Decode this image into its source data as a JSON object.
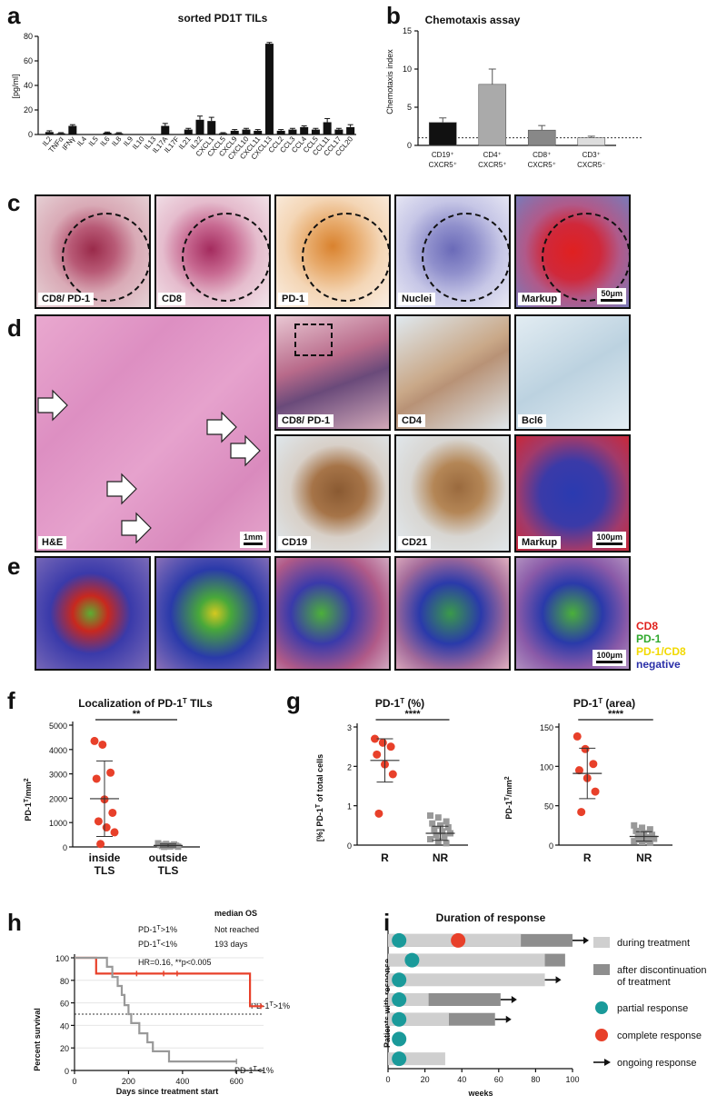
{
  "panels": {
    "a": "a",
    "b": "b",
    "c": "c",
    "d": "d",
    "e": "e",
    "f": "f",
    "g": "g",
    "h": "h",
    "i": "i"
  },
  "panel_a": {
    "title": "sorted PD1T TILs",
    "ylabel": "[pg/ml]"
  },
  "panel_b": {
    "title": "Chemotaxis assay",
    "ylabel": "Chemotaxis index",
    "cat_lines": [
      [
        "CD19⁺",
        "CXCR5⁺"
      ],
      [
        "CD4⁺",
        "CXCR5⁺"
      ],
      [
        "CD8⁺",
        "CXCR5⁺"
      ],
      [
        "CD3⁺",
        "CXCR5⁻"
      ]
    ]
  },
  "panel_c": {
    "labels": [
      "CD8/ PD-1",
      "CD8",
      "PD-1",
      "Nuclei",
      "Markup"
    ],
    "scale": "50μm"
  },
  "panel_d": {
    "labels": [
      "H&E",
      "CD8/ PD-1",
      "CD4",
      "Bcl6",
      "CD19",
      "CD21",
      "Markup"
    ],
    "scale_he": "1mm",
    "scale_markup": "100μm"
  },
  "panel_e": {
    "scale": "100μm",
    "legend": [
      {
        "label": "CD8",
        "color": "#e0201c"
      },
      {
        "label": "PD-1",
        "color": "#2fa82c"
      },
      {
        "label": "PD-1/CD8",
        "color": "#f2d900"
      },
      {
        "label": "negative",
        "color": "#2a2fa8"
      }
    ]
  },
  "panel_f": {
    "title": "Localization of PD-1T TILs",
    "ylabel": "PD-1T/mm²",
    "sig": "**",
    "cat_lines": [
      [
        "inside",
        "TLS"
      ],
      [
        "outside",
        "TLS"
      ]
    ]
  },
  "panel_g1": {
    "title": "PD-1T (%)",
    "ylabel": "[%] PD-1T of total cells",
    "sig": "****"
  },
  "panel_g2": {
    "title": "PD-1T (area)",
    "ylabel": "PD-1T/mm²",
    "sig": "****"
  },
  "panel_h": {
    "xlabel": "Days since treatment start",
    "ylabel": "Percent survival",
    "stats_header": "median OS",
    "row1_group": "PD-1T>1%",
    "row1_val": "Not reached",
    "row2_group": "PD-1T<1%",
    "row2_val": "193 days",
    "hr": "HR=0.16, **p<0.005",
    "label_hi": "PD-1T>1%",
    "label_lo": "PD-1T<1%"
  },
  "panel_i": {
    "title": "Duration of response",
    "ylabel": "Patients with response",
    "xlabel": "weeks",
    "legend": [
      {
        "label": "during treatment",
        "kind": "light"
      },
      {
        "label": "after discontinuation of treatment",
        "kind": "dark"
      },
      {
        "label": "partial response",
        "kind": "partial"
      },
      {
        "label": "complete response",
        "kind": "complete"
      },
      {
        "label": "ongoing response",
        "kind": "arrow"
      }
    ]
  },
  "chart_data": [
    {
      "id": "a",
      "type": "bar",
      "title": "sorted PD1T TILs",
      "ylabel": "[pg/ml]",
      "ylim": [
        0,
        80
      ],
      "yticks": [
        0,
        20,
        40,
        60,
        80
      ],
      "categories": [
        "IL2",
        "TNFα",
        "IFNγ",
        "IL4",
        "IL5",
        "IL6",
        "IL8",
        "IL9",
        "IL10",
        "IL13",
        "IL17A",
        "IL17F",
        "IL21",
        "IL22",
        "CXCL1",
        "CXCL5",
        "CXCL9",
        "CXCL10",
        "CXCL11",
        "CXCL13",
        "CCL2",
        "CCL3",
        "CCL4",
        "CCL5",
        "CCL11",
        "CCL17",
        "CCL20"
      ],
      "values": [
        2,
        1,
        7,
        0,
        0,
        1.5,
        1,
        0,
        0,
        0,
        7,
        0,
        4,
        12,
        11,
        1,
        3,
        4,
        3,
        74,
        3,
        4,
        6,
        4,
        10,
        4,
        6
      ],
      "errors": [
        1,
        0.5,
        1,
        0,
        0,
        0.5,
        0.5,
        0,
        0,
        0,
        2,
        0,
        1,
        3,
        3,
        0.5,
        1,
        1,
        1,
        1,
        1,
        1,
        1,
        1,
        3,
        1,
        2
      ]
    },
    {
      "id": "b",
      "type": "bar",
      "title": "Chemotaxis assay",
      "ylabel": "Chemotaxis index",
      "ylim": [
        0,
        15
      ],
      "yticks": [
        0,
        5,
        10,
        15
      ],
      "values": [
        3,
        8,
        2,
        1
      ],
      "errors": [
        0.6,
        2,
        0.6,
        0.2
      ],
      "colors": [
        "#111111",
        "#aaaaaa",
        "#888888",
        "#dddddd"
      ],
      "reference_line": 1
    },
    {
      "id": "f",
      "type": "scatter",
      "title": "Localization of PD-1T TILs",
      "ylabel": "PD-1T/mm²",
      "ylim": [
        0,
        5000
      ],
      "yticks": [
        0,
        1000,
        2000,
        3000,
        4000,
        5000
      ],
      "series": [
        {
          "name": "inside TLS",
          "values": [
            4350,
            4200,
            3050,
            2800,
            1950,
            1400,
            1050,
            800,
            600,
            120
          ],
          "mean": 1980,
          "sd": 1550,
          "color": "#e8402a"
        },
        {
          "name": "outside TLS",
          "values": [
            150,
            120,
            100,
            80,
            60,
            50,
            40,
            20,
            10,
            5
          ],
          "mean": 60,
          "sd": 60,
          "color": "#999999"
        }
      ]
    },
    {
      "id": "g1",
      "type": "scatter",
      "title": "PD-1T (%)",
      "ylabel": "[%] PD-1T of total cells",
      "ylim": [
        0,
        3
      ],
      "yticks": [
        0,
        1,
        2,
        3
      ],
      "series": [
        {
          "name": "R",
          "values": [
            2.7,
            2.6,
            2.5,
            2.3,
            2.05,
            1.8,
            0.8
          ],
          "mean": 2.15,
          "sd": 0.55,
          "color": "#e8402a"
        },
        {
          "name": "NR",
          "values": [
            0.75,
            0.7,
            0.6,
            0.55,
            0.5,
            0.45,
            0.4,
            0.35,
            0.3,
            0.25,
            0.2,
            0.15,
            0.1,
            0.05
          ],
          "mean": 0.3,
          "sd": 0.18,
          "color": "#999999"
        }
      ]
    },
    {
      "id": "g2",
      "type": "scatter",
      "title": "PD-1T (area)",
      "ylabel": "PD-1T/mm²",
      "ylim": [
        0,
        150
      ],
      "yticks": [
        0,
        50,
        100,
        150
      ],
      "series": [
        {
          "name": "R",
          "values": [
            138,
            122,
            103,
            95,
            85,
            68,
            42
          ],
          "mean": 91,
          "sd": 32,
          "color": "#e8402a"
        },
        {
          "name": "NR",
          "values": [
            25,
            22,
            20,
            18,
            15,
            13,
            12,
            10,
            8,
            7,
            6,
            5,
            4,
            3
          ],
          "mean": 11,
          "sd": 6,
          "color": "#999999"
        }
      ]
    },
    {
      "id": "h",
      "type": "line",
      "title": "",
      "xlabel": "Days since treatment start",
      "ylabel": "Percent survival",
      "xlim": [
        0,
        700
      ],
      "ylim": [
        0,
        100
      ],
      "xticks": [
        0,
        200,
        400,
        600
      ],
      "yticks": [
        0,
        20,
        40,
        60,
        80,
        100
      ],
      "series": [
        {
          "name": "PD-1T>1%",
          "color": "#e8402a",
          "steps": [
            [
              0,
              100
            ],
            [
              80,
              100
            ],
            [
              80,
              86
            ],
            [
              650,
              86
            ],
            [
              650,
              57
            ],
            [
              700,
              57
            ]
          ],
          "censor": [
            [
              230,
              86
            ],
            [
              330,
              86
            ],
            [
              380,
              86
            ],
            [
              690,
              57
            ]
          ]
        },
        {
          "name": "PD-1T<1%",
          "color": "#999999",
          "steps": [
            [
              0,
              100
            ],
            [
              120,
              100
            ],
            [
              120,
              92
            ],
            [
              140,
              92
            ],
            [
              140,
              83
            ],
            [
              160,
              83
            ],
            [
              160,
              75
            ],
            [
              175,
              75
            ],
            [
              175,
              67
            ],
            [
              185,
              67
            ],
            [
              185,
              58
            ],
            [
              200,
              58
            ],
            [
              200,
              50
            ],
            [
              210,
              50
            ],
            [
              210,
              42
            ],
            [
              240,
              42
            ],
            [
              240,
              33
            ],
            [
              270,
              33
            ],
            [
              270,
              25
            ],
            [
              290,
              25
            ],
            [
              290,
              17
            ],
            [
              350,
              17
            ],
            [
              350,
              8
            ],
            [
              600,
              8
            ]
          ],
          "censor": [
            [
              600,
              8
            ]
          ]
        }
      ],
      "reference_line": 50
    },
    {
      "id": "i",
      "type": "bar",
      "title": "Duration of response",
      "xlabel": "weeks",
      "ylabel": "Patients with response",
      "xlim": [
        0,
        100
      ],
      "xticks": [
        0,
        20,
        40,
        60,
        80,
        100
      ],
      "bars": [
        {
          "during": 72,
          "after": 100,
          "partial_at": 6,
          "complete_at": 38,
          "ongoing": true
        },
        {
          "during": 85,
          "after": 96,
          "partial_at": 13,
          "ongoing": false
        },
        {
          "during": 85,
          "after": null,
          "partial_at": 6,
          "ongoing": true
        },
        {
          "during": 22,
          "after": 61,
          "partial_at": 6,
          "ongoing": true
        },
        {
          "during": 33,
          "after": 58,
          "partial_at": 6,
          "ongoing": true
        },
        {
          "during": null,
          "after": null,
          "partial_at": 6,
          "ongoing": false
        },
        {
          "during": 31,
          "after": null,
          "partial_at": 6,
          "ongoing": false
        }
      ]
    }
  ]
}
